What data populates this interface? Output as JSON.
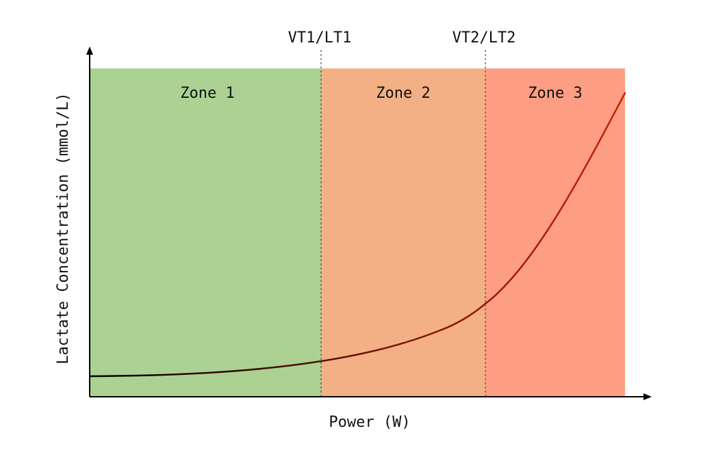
{
  "chart_data": {
    "type": "line",
    "title": "",
    "xlabel": "Power (W)",
    "ylabel": "Lactate Concentration (mmol/L)",
    "axis_ticks": "none",
    "grid": false,
    "zones": [
      {
        "label": "Zone 1",
        "color": "#abd292"
      },
      {
        "label": "Zone 2",
        "color": "#f3b085"
      },
      {
        "label": "Zone 3",
        "color": "#fd9d84"
      }
    ],
    "thresholds": [
      {
        "label": "VT1/LT1"
      },
      {
        "label": "VT2/LT2"
      }
    ],
    "curve_gradient": [
      "#000000",
      "#7e1300",
      "#c82000"
    ]
  }
}
